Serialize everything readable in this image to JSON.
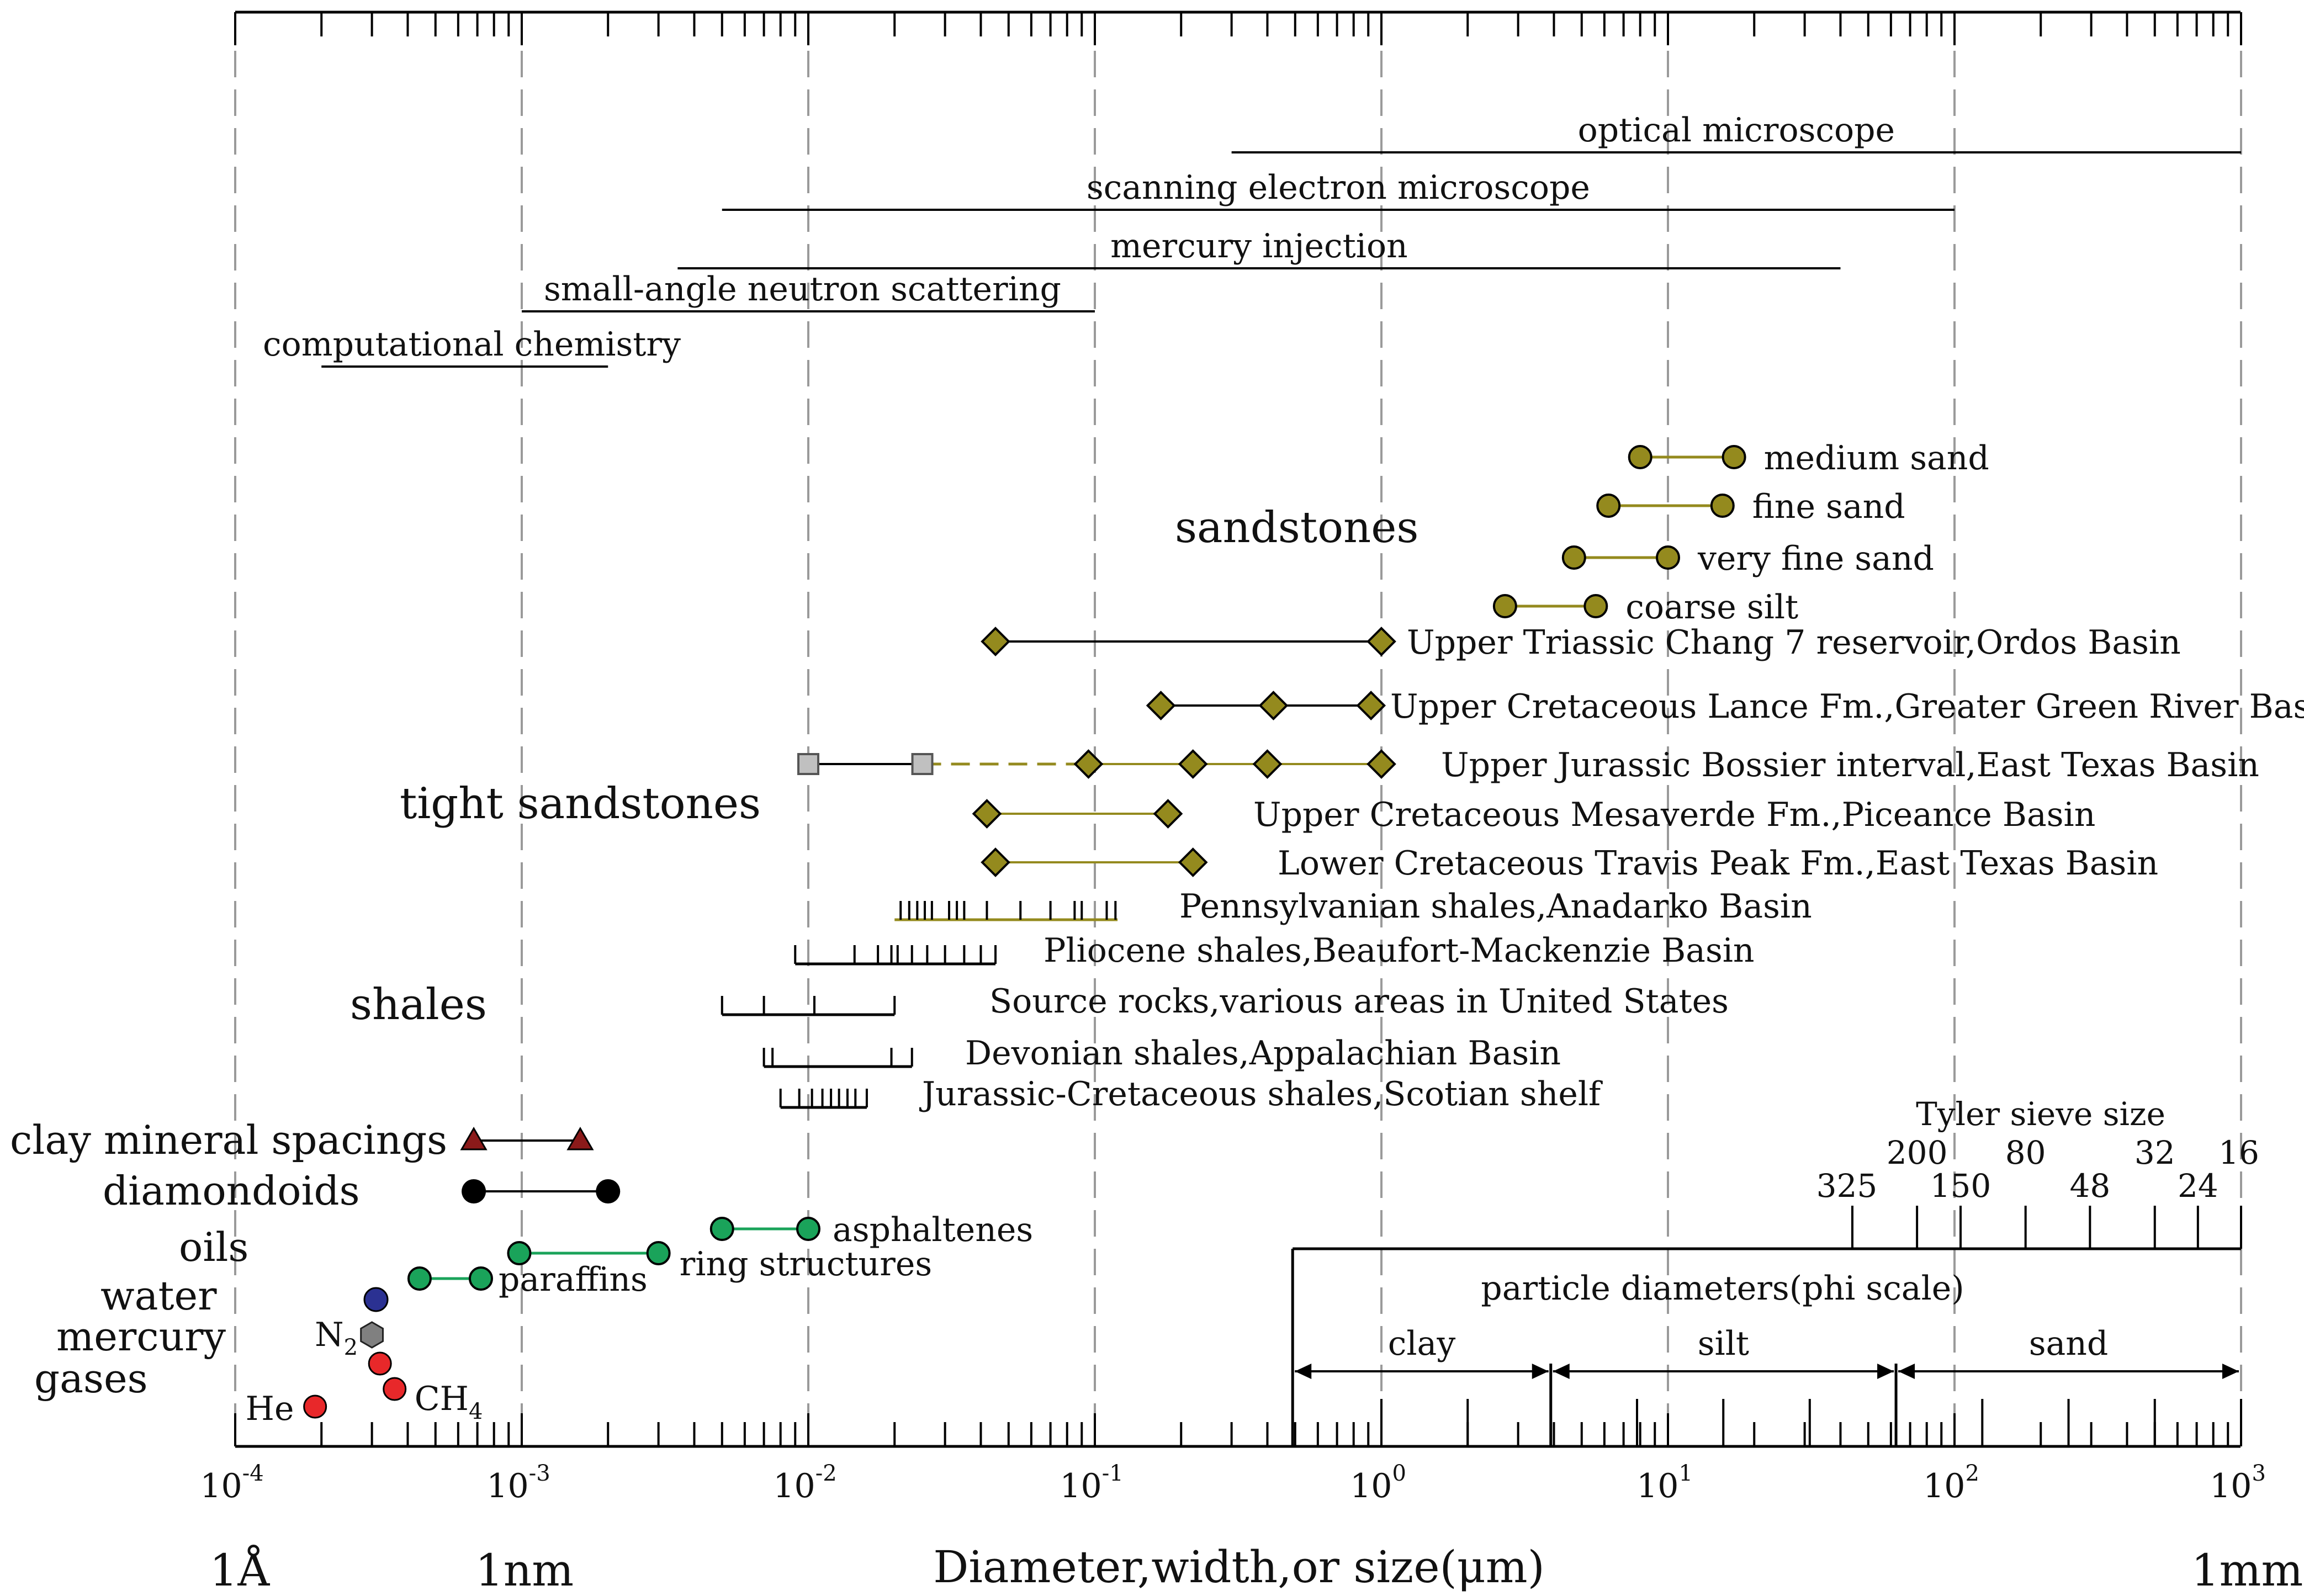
{
  "chart_data": {
    "type": "range",
    "xscale": "log10",
    "xlim": [
      0.0001,
      1000
    ],
    "xlabel": "Diameter,width,or size(μm)",
    "ref_labels": {
      "left": "1Å",
      "nm": "1nm",
      "right": "1mm"
    },
    "tick_labels": [
      {
        "base": "10",
        "exp": "-4",
        "x": 0.0001
      },
      {
        "base": "10",
        "exp": "-3",
        "x": 0.001
      },
      {
        "base": "10",
        "exp": "-2",
        "x": 0.01
      },
      {
        "base": "10",
        "exp": "-1",
        "x": 0.1
      },
      {
        "base": "10",
        "exp": "0",
        "x": 1
      },
      {
        "base": "10",
        "exp": "1",
        "x": 10
      },
      {
        "base": "10",
        "exp": "2",
        "x": 100
      },
      {
        "base": "10",
        "exp": "3",
        "x": 1000
      }
    ],
    "methods": [
      {
        "name": "optical microscope",
        "x": [
          0.3,
          1000
        ]
      },
      {
        "name": "scanning electron microscope",
        "x": [
          0.005,
          100
        ]
      },
      {
        "name": "mercury injection",
        "x": [
          0.0035,
          40
        ]
      },
      {
        "name": "small-angle neutron scattering",
        "x": [
          0.001,
          0.1
        ]
      },
      {
        "name": "computational chemistry",
        "x": [
          0.0002,
          0.002
        ]
      }
    ],
    "group_labels": {
      "sandstones": "sandstones",
      "tight": "tight sandstones",
      "shales": "shales"
    },
    "sand_classes": [
      {
        "name": "medium sand",
        "x": [
          8,
          17
        ]
      },
      {
        "name": "fine sand",
        "x": [
          6.2,
          15.5
        ]
      },
      {
        "name": "very fine sand",
        "x": [
          4.7,
          10
        ]
      },
      {
        "name": "coarse silt",
        "x": [
          2.7,
          5.6
        ]
      }
    ],
    "tight_sandstones": [
      {
        "name": "Upper Triassic Chang  7  reservoir,Ordos  Basin",
        "points": [
          0.045,
          1.0
        ],
        "color": "#000000"
      },
      {
        "name": "Upper Cretaceous Lance Fm.,Greater Green River Basin",
        "points": [
          0.17,
          0.42,
          0.92
        ],
        "color": "#000000"
      },
      {
        "name": "Upper Jurassic Bossier interval,East Texas Basin",
        "points": [
          0.095,
          0.22,
          0.4,
          1.0
        ],
        "squares": [
          0.01,
          0.025
        ],
        "color": "#948a1e"
      },
      {
        "name": "Upper Cretaceous Mesaverde Fm.,Piceance Basin",
        "points": [
          0.042,
          0.18
        ],
        "color": "#948a1e"
      },
      {
        "name": "Lower Cretaceous Travis Peak Fm.,East Texas Basin",
        "points": [
          0.045,
          0.22
        ],
        "color": "#948a1e"
      }
    ],
    "shales": [
      {
        "name": "Pennsylvanian shales,Anadarko Basin",
        "x": [
          0.02,
          0.12
        ],
        "ticks": [
          0.021,
          0.0225,
          0.024,
          0.0255,
          0.027,
          0.031,
          0.033,
          0.035,
          0.042,
          0.055,
          0.07,
          0.085,
          0.09,
          0.11,
          0.118
        ],
        "color": "#948a1e"
      },
      {
        "name": "Pliocene shales,Beaufort-Mackenzie Basin",
        "x": [
          0.009,
          0.045
        ],
        "ticks": [
          0.009,
          0.0145,
          0.0175,
          0.0195,
          0.0205,
          0.023,
          0.026,
          0.03,
          0.035,
          0.04,
          0.045
        ],
        "color": "#000000"
      },
      {
        "name": "Source rocks,various areas in United States",
        "x": [
          0.005,
          0.02
        ],
        "ticks": [
          0.005,
          0.007,
          0.0105,
          0.02
        ],
        "color": "#000000"
      },
      {
        "name": "Devonian shales,Appalachian Basin",
        "x": [
          0.007,
          0.023
        ],
        "ticks": [
          0.007,
          0.0075,
          0.0195,
          0.023
        ],
        "color": "#000000"
      },
      {
        "name": "Jurassic-Cretaceous shales,Scotian shelf",
        "x": [
          0.008,
          0.016
        ],
        "ticks": [
          0.008,
          0.0093,
          0.0103,
          0.0112,
          0.012,
          0.0128,
          0.0137,
          0.0146,
          0.016
        ],
        "color": "#000000"
      }
    ],
    "molecular": {
      "labels": {
        "clay": "clay mineral spacings",
        "diamondoids": "diamondoids",
        "oils": "oils",
        "water": "water",
        "mercury": "mercury",
        "gases": "gases"
      },
      "clay_spacings": {
        "x": [
          0.00068,
          0.0016
        ],
        "color": "#8b1a1a"
      },
      "diamondoids": {
        "x": [
          0.00068,
          0.002
        ],
        "color": "#000000"
      },
      "paraffins": {
        "label": "paraffins",
        "x": [
          0.00044,
          0.00072
        ],
        "color": "#1aa35a"
      },
      "ring_structures": {
        "label": "ring structures",
        "x": [
          0.00098,
          0.003
        ],
        "color": "#1aa35a"
      },
      "asphaltenes": {
        "label": "asphaltenes",
        "x": [
          0.005,
          0.01
        ],
        "color": "#1aa35a"
      },
      "water": {
        "x": 0.00031,
        "color": "#2b3192"
      },
      "mercury": {
        "x": 0.0003,
        "color": "#808080"
      },
      "gases": [
        {
          "label": "He",
          "x": 0.00019,
          "color": "#e8282a"
        },
        {
          "label": "N",
          "sub": "2",
          "x": 0.00032,
          "color": "#e8282a"
        },
        {
          "label": "CH",
          "sub": "4",
          "x": 0.00036,
          "color": "#e8282a"
        }
      ]
    },
    "tyler_sieve": {
      "title": "Tyler sieve size",
      "sizes": [
        {
          "label": "325",
          "x": 44,
          "row": "lower"
        },
        {
          "label": "200",
          "x": 74,
          "row": "upper"
        },
        {
          "label": "150",
          "x": 105,
          "row": "lower"
        },
        {
          "label": "80",
          "x": 177,
          "row": "upper"
        },
        {
          "label": "48",
          "x": 297,
          "row": "lower"
        },
        {
          "label": "32",
          "x": 500,
          "row": "upper"
        },
        {
          "label": "24",
          "x": 707,
          "row": "lower"
        },
        {
          "label": "16",
          "x": 1000,
          "row": "upper"
        }
      ]
    },
    "phi_scale": {
      "title": "particle diameters(phi scale)",
      "x_start": 0.49,
      "classes": [
        {
          "name": "clay",
          "x": [
            0.49,
            3.9
          ]
        },
        {
          "name": "silt",
          "x": [
            3.9,
            62.5
          ]
        },
        {
          "name": "sand",
          "x": [
            62.5,
            1000
          ]
        }
      ],
      "ticks": [
        1,
        2,
        3.9,
        7.8,
        15.6,
        31.25,
        62.5,
        125,
        250,
        500,
        1000
      ]
    },
    "colors": {
      "olive": "#948a1e",
      "green": "#1aa35a",
      "gridline": "#9a9a9a",
      "darkred": "#8b1a1a"
    }
  }
}
